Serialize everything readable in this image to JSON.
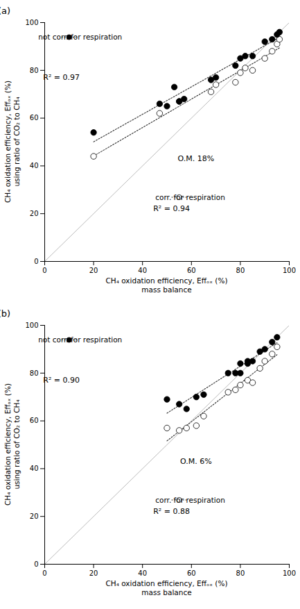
{
  "chart_data": [
    {
      "type": "scatter",
      "title": "(a)",
      "xlabel": "CH₄ oxidation efficiency, Effₒₓ (%)\nmass balance",
      "ylabel": "CH₄ oxidation efficiency, Effₒₓ (%)\nusing ratio of CO₂ to CH₄",
      "xlim": [
        0,
        100
      ],
      "ylim": [
        0,
        100
      ],
      "xticks": [
        0,
        20,
        40,
        60,
        80,
        100
      ],
      "yticks": [
        0,
        20,
        40,
        60,
        80,
        100
      ],
      "grid": false,
      "annotations": [
        "O.M. 18%"
      ],
      "series": [
        {
          "type": "line",
          "color": "#bbbbbb",
          "x": [
            0,
            100
          ],
          "values": [
            0,
            100
          ]
        },
        {
          "type": "regression",
          "name": "not corr. for respiration",
          "marker": "filled",
          "line_style": "dotted",
          "color": "#333333",
          "x": [
            20,
            47,
            50,
            53,
            55,
            57,
            68,
            70,
            78,
            80,
            82,
            85,
            90,
            93,
            95,
            96
          ],
          "values": [
            54,
            66,
            65,
            73,
            67,
            68,
            76,
            77,
            82,
            85,
            86,
            86,
            92,
            93,
            95,
            96
          ],
          "annotation": "R² = 0.97"
        },
        {
          "type": "regression",
          "name": "corr. for respiration",
          "marker": "open",
          "line_style": "dotted",
          "color": "#333333",
          "x": [
            20,
            47,
            55,
            68,
            70,
            78,
            80,
            82,
            85,
            90,
            93,
            95,
            96
          ],
          "values": [
            44,
            62,
            67,
            71,
            74,
            75,
            79,
            81,
            80,
            85,
            88,
            91,
            93
          ],
          "annotation": "R² = 0.94"
        }
      ]
    },
    {
      "type": "scatter",
      "title": "(b)",
      "xlabel": "CH₄ oxidation efficiency, Effₒₓ (%)\nmass balance",
      "ylabel": "CH₄ oxidation efficiency, Effₒₓ (%)\nusing ratio of CO₂ to CH₄",
      "xlim": [
        0,
        100
      ],
      "ylim": [
        0,
        100
      ],
      "xticks": [
        0,
        20,
        40,
        60,
        80,
        100
      ],
      "yticks": [
        0,
        20,
        40,
        60,
        80,
        100
      ],
      "grid": false,
      "annotations": [
        "O.M. 6%"
      ],
      "series": [
        {
          "type": "line",
          "color": "#bbbbbb",
          "x": [
            0,
            100
          ],
          "values": [
            0,
            100
          ]
        },
        {
          "type": "regression",
          "name": "not corr. for respiration",
          "marker": "filled",
          "line_style": "dotted",
          "color": "#333333",
          "x": [
            50,
            55,
            58,
            62,
            65,
            75,
            78,
            80,
            80,
            83,
            83,
            85,
            88,
            90,
            93,
            95
          ],
          "values": [
            69,
            67,
            65,
            70,
            71,
            80,
            80,
            80,
            84,
            84,
            85,
            85,
            89,
            90,
            93,
            95
          ],
          "annotation": "R² = 0.90"
        },
        {
          "type": "regression",
          "name": "corr. for respiration",
          "marker": "open",
          "line_style": "dotted",
          "color": "#333333",
          "x": [
            50,
            55,
            58,
            62,
            65,
            75,
            78,
            80,
            83,
            85,
            88,
            90,
            93,
            95
          ],
          "values": [
            57,
            56,
            57,
            58,
            62,
            72,
            73,
            75,
            77,
            76,
            82,
            85,
            88,
            91
          ],
          "annotation": "R² = 0.88"
        }
      ]
    }
  ]
}
